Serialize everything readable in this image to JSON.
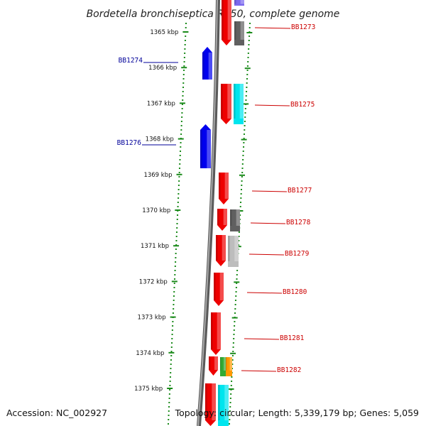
{
  "title": "Bordetella bronchiseptica RB50, complete genome",
  "footer": {
    "accession": "Accession: NC_002927",
    "stats": "Topology: circular; Length: 5,339,179 bp; Genes: 5,059"
  },
  "colors": {
    "backbone": "#808080",
    "tick": "#1a8a1a",
    "forward_label": "#cc0000",
    "reverse_label": "#000099",
    "reverse_gene": "#0000ee",
    "forward_gene": "#ee0000",
    "cog_dark_gray": "#606060",
    "cog_light_gray": "#bdbdbd",
    "cog_cyan": "#00e5ee",
    "cog_purple": "#7b68ee",
    "cog_green": "#33aa33",
    "cog_orange": "#ff9900"
  },
  "kbp_ticks": [
    "1365 kbp",
    "1366 kbp",
    "1367 kbp",
    "1368 kbp",
    "1369 kbp",
    "1370 kbp",
    "1371 kbp",
    "1372 kbp",
    "1373 kbp",
    "1374 kbp",
    "1375 kbp"
  ],
  "forward_labels": [
    "BB1273",
    "BB1275",
    "BB1277",
    "BB1278",
    "BB1279",
    "BB1280",
    "BB1281",
    "BB1282"
  ],
  "reverse_labels": [
    "BB1274",
    "BB1276"
  ]
}
